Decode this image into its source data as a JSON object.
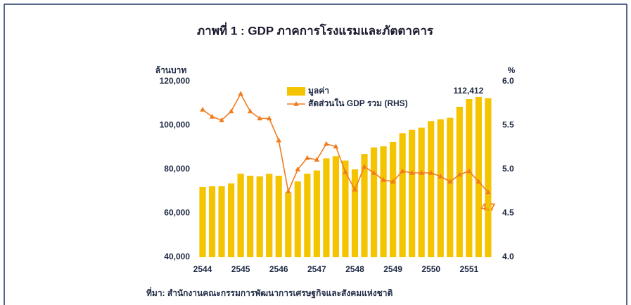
{
  "chart_data": {
    "type": "bar-line",
    "title": "ภาพที่ 1 : GDP ภาคการโรงแรมและภัตตาคาร",
    "y_label": "ล้านบาท",
    "y2_label": "%",
    "source": "ที่มา: สำนักงานคณะกรรมการพัฒนาการเศรษฐกิจและสังคมแห่งชาติ",
    "categories": [
      "2544",
      null,
      null,
      null,
      "2545",
      null,
      null,
      null,
      "2546",
      null,
      null,
      null,
      "2547",
      null,
      null,
      null,
      "2548",
      null,
      null,
      null,
      "2549",
      null,
      null,
      null,
      "2550",
      null,
      null,
      null,
      "2551",
      null,
      null
    ],
    "series": [
      {
        "name": "มูลค่า",
        "type": "bar",
        "color": "#f5c400",
        "values": [
          72000,
          72300,
          72300,
          73600,
          78000,
          77100,
          76800,
          78000,
          77100,
          69500,
          74500,
          78000,
          79500,
          85000,
          86000,
          84000,
          80000,
          87000,
          90000,
          90500,
          92500,
          96500,
          98000,
          99000,
          102000,
          102800,
          103500,
          108500,
          112000,
          113000,
          112412
        ],
        "value_labels": [
          null,
          null,
          null,
          null,
          null,
          null,
          null,
          null,
          null,
          null,
          null,
          null,
          null,
          null,
          null,
          null,
          null,
          null,
          null,
          null,
          null,
          null,
          null,
          null,
          null,
          null,
          null,
          null,
          null,
          null,
          "112,412"
        ]
      },
      {
        "name": "สัดส่วนใน GDP รวม (RHS)",
        "type": "line",
        "axis": "y2",
        "color": "#f07c1f",
        "values": [
          5.68,
          5.6,
          5.56,
          5.66,
          5.86,
          5.66,
          5.58,
          5.58,
          5.33,
          4.75,
          5.0,
          5.13,
          5.11,
          5.29,
          5.26,
          4.97,
          4.77,
          5.03,
          4.96,
          4.88,
          4.86,
          4.98,
          4.96,
          4.96,
          4.96,
          4.92,
          4.86,
          4.94,
          4.98,
          4.86,
          4.74
        ],
        "value_labels": [
          null,
          null,
          null,
          null,
          null,
          null,
          null,
          null,
          null,
          null,
          null,
          null,
          null,
          null,
          null,
          null,
          null,
          null,
          null,
          null,
          null,
          null,
          null,
          null,
          null,
          null,
          null,
          null,
          null,
          null,
          "4.7"
        ]
      }
    ],
    "ylim": [
      40000,
      120000
    ],
    "yticks": [
      {
        "value": 40000,
        "label": "40,000"
      },
      {
        "value": 60000,
        "label": "60,000"
      },
      {
        "value": 80000,
        "label": "80,000"
      },
      {
        "value": 100000,
        "label": "100,000"
      },
      {
        "value": 120000,
        "label": "120,000"
      }
    ],
    "y2lim": [
      4,
      6
    ],
    "y2ticks": [
      {
        "value": 4,
        "label": "4.0"
      },
      {
        "value": 4.5,
        "label": "4.5"
      },
      {
        "value": 5,
        "label": "5.0"
      },
      {
        "value": 5.5,
        "label": "5.5"
      },
      {
        "value": 6,
        "label": "6.0"
      }
    ],
    "grid": false,
    "legend": "top"
  }
}
